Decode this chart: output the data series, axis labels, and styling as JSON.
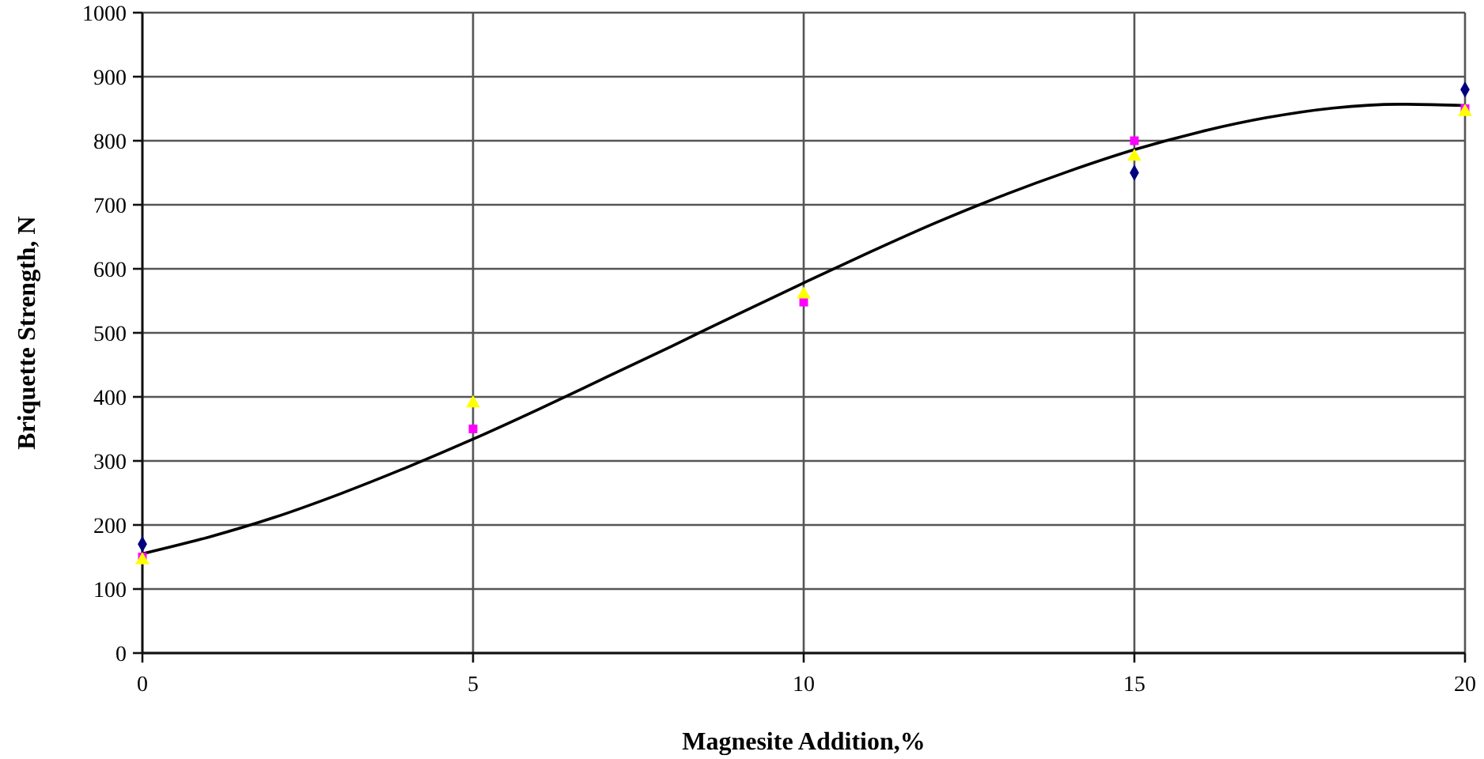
{
  "chart_data": {
    "type": "scatter",
    "xlabel": "Magnesite Addition,%",
    "ylabel": "Briquette Strength, N",
    "x": [
      0,
      5,
      10,
      15,
      20
    ],
    "series": [
      {
        "color": "#000080",
        "marker": "diamond",
        "values": [
          170,
          null,
          null,
          750,
          880
        ]
      },
      {
        "color": "#ff00ff",
        "marker": "square",
        "values": [
          150,
          350,
          548,
          800,
          850
        ]
      },
      {
        "color": "#ffff00",
        "marker": "triangle",
        "values": [
          145,
          390,
          560,
          775,
          845
        ]
      },
      {
        "type": "line",
        "color": "#000000",
        "marker": "none",
        "line_style": "solid",
        "x": [
          0,
          1,
          2,
          3,
          4,
          5,
          6,
          7,
          8,
          9,
          10,
          11,
          12,
          13,
          14,
          15,
          16,
          17,
          18,
          19,
          20
        ],
        "values": [
          155,
          181,
          212,
          249,
          290,
          334,
          381,
          430,
          479,
          529,
          578,
          626,
          672,
          714,
          752,
          786,
          814,
          836,
          851,
          857,
          855
        ]
      }
    ],
    "xlim": [
      0,
      20
    ],
    "xticks": [
      0,
      5,
      10,
      15,
      20
    ],
    "ylim": [
      0,
      1000
    ],
    "yticks": [
      0,
      100,
      200,
      300,
      400,
      500,
      600,
      700,
      800,
      900,
      1000
    ],
    "grid": true
  }
}
